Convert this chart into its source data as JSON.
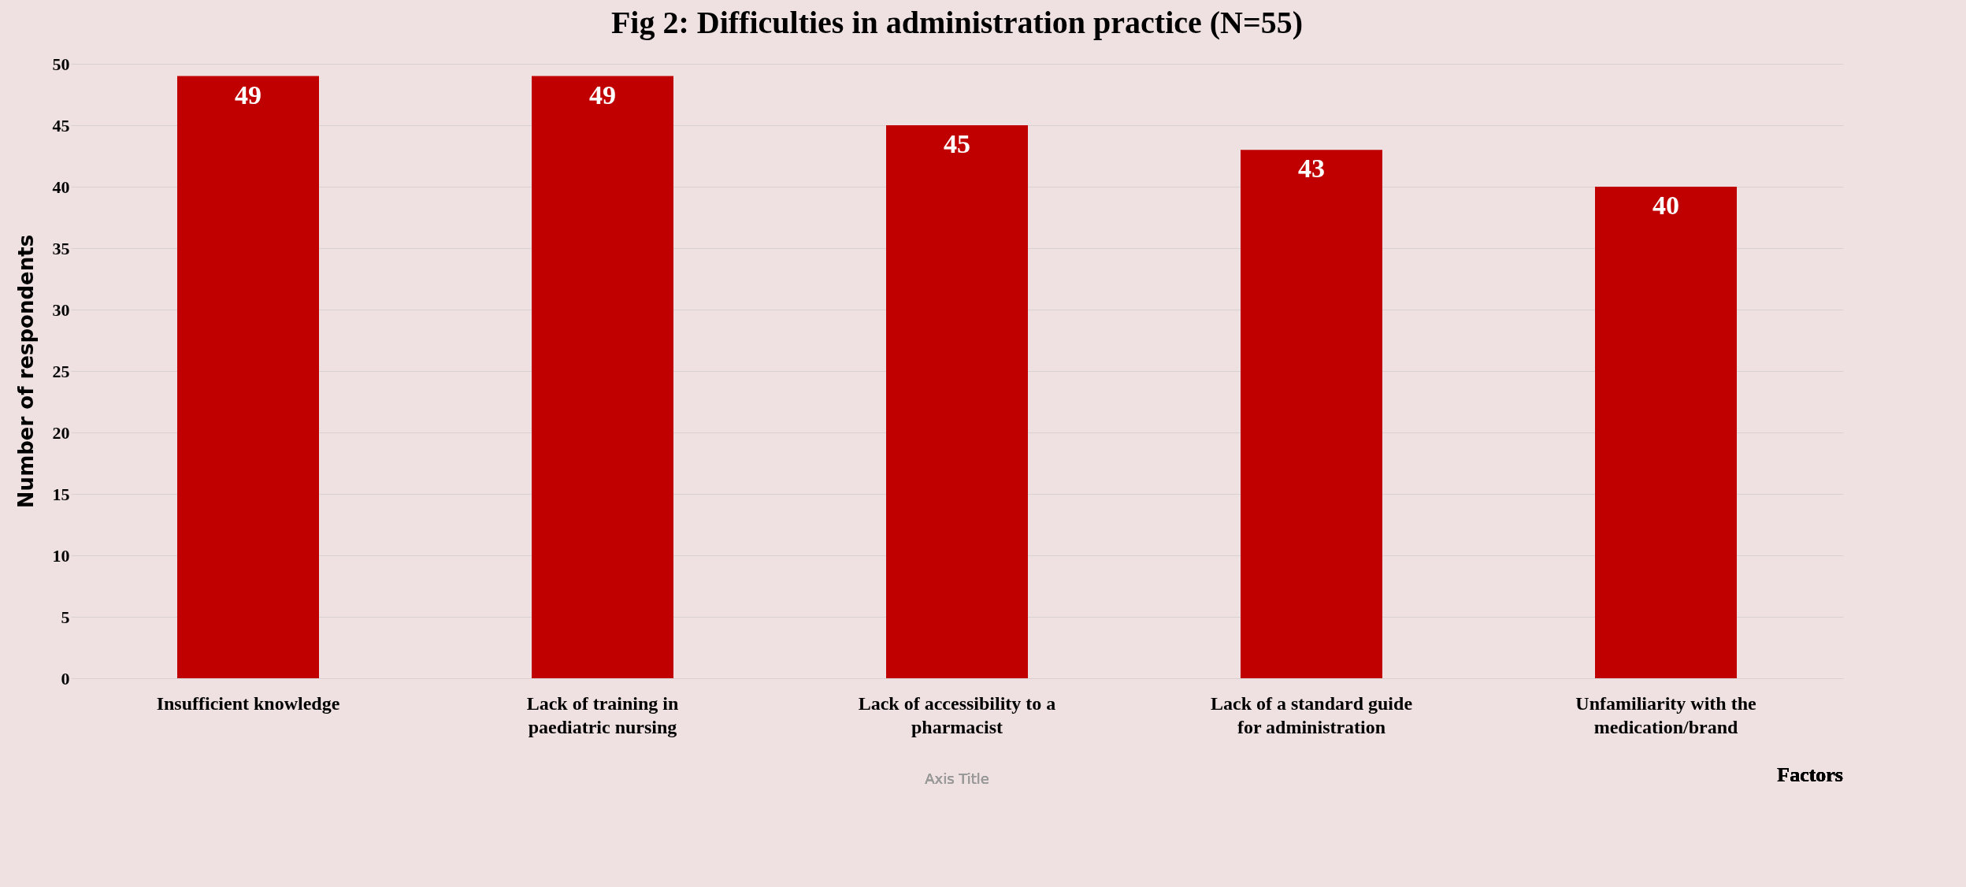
{
  "chart_data": {
    "type": "bar",
    "title": "Fig 2: Difficulties in administration practice (N=55)",
    "categories": [
      "Insufficient knowledge",
      "Lack of training in paediatric nursing",
      "Lack of accessibility to a pharmacist",
      "Lack of a standard guide for administration",
      "Unfamiliarity with the medication/brand"
    ],
    "values": [
      49,
      49,
      45,
      43,
      40
    ],
    "color": "#c00000",
    "ylim": [
      0,
      50
    ],
    "yticks": [
      0,
      5,
      10,
      15,
      20,
      25,
      30,
      35,
      40,
      45,
      50
    ],
    "grid": "y",
    "data_labels": true,
    "xlabel": "Factors",
    "ylabel": "Number of respondents",
    "annotations": [
      "Axis Title"
    ]
  }
}
